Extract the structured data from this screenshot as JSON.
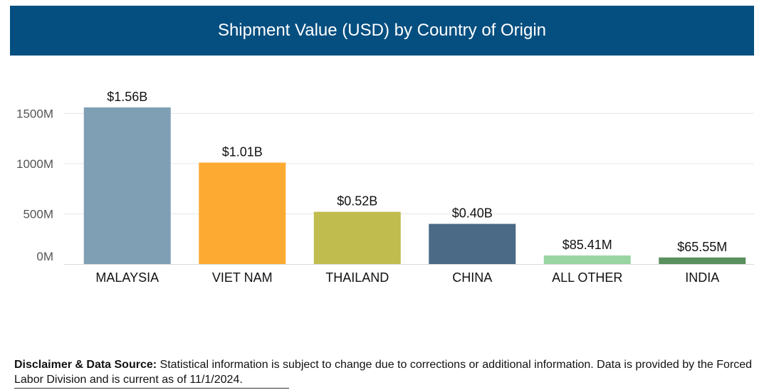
{
  "chart_data": {
    "type": "bar",
    "title": "Shipment Value (USD) by Country of Origin",
    "categories": [
      "MALAYSIA",
      "VIET NAM",
      "THAILAND",
      "CHINA",
      "ALL OTHER",
      "INDIA"
    ],
    "values": [
      1560,
      1010,
      520,
      400,
      85.41,
      65.55
    ],
    "value_units": "millions USD",
    "data_labels": [
      "$1.56B",
      "$1.01B",
      "$0.52B",
      "$0.40B",
      "$85.41M",
      "$65.55M"
    ],
    "colors": [
      "#7f9fb5",
      "#fcaa31",
      "#c0bc4e",
      "#4a6a85",
      "#99d4a3",
      "#5a8f5e"
    ],
    "yticks": [
      0,
      500,
      1000,
      1500
    ],
    "ytick_labels": [
      "0M",
      "500M",
      "1000M",
      "1500M"
    ],
    "ylim": [
      0,
      1600
    ],
    "grid": true,
    "xlabel": "",
    "ylabel": ""
  },
  "header": {
    "background": "#054f80"
  },
  "footer": {
    "label": "Disclaimer & Data Source:",
    "text": " Statistical information is subject to change due to corrections or additional information. Data is provided by the Forced Labor Division and is current as of 11/1/2024."
  }
}
